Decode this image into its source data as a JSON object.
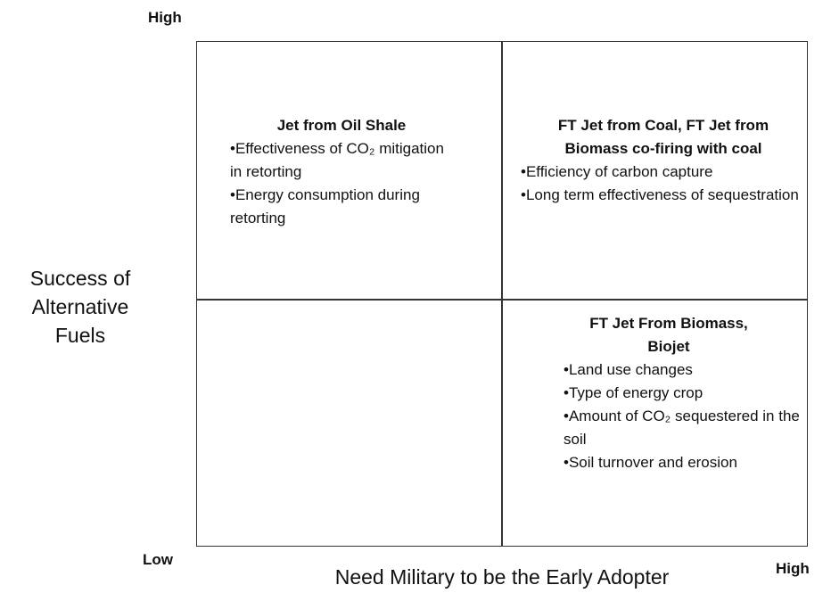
{
  "axes": {
    "y_high": "High",
    "y_low": "Low",
    "x_high": "High",
    "y_label": [
      "Success of",
      "Alternative",
      "Fuels"
    ],
    "x_label": "Need Military to be the Early Adopter"
  },
  "quadrants": [
    {
      "title": [
        "Jet from Oil Shale"
      ],
      "items": [
        "•Effectiveness of CO₂ mitigation in retorting",
        "•Energy consumption during retorting"
      ]
    },
    {
      "title": [
        "FT Jet from Coal, FT Jet from",
        "Biomass co-firing with coal"
      ],
      "items": [
        "•Efficiency of carbon capture",
        "•Long term effectiveness of sequestration"
      ]
    },
    {
      "title": [
        "FT Jet From Biomass,",
        "Biojet"
      ],
      "items": [
        "•Land use changes",
        "•Type of energy crop",
        "•Amount of CO₂ sequestered in the soil",
        "•Soil turnover and erosion"
      ]
    }
  ]
}
